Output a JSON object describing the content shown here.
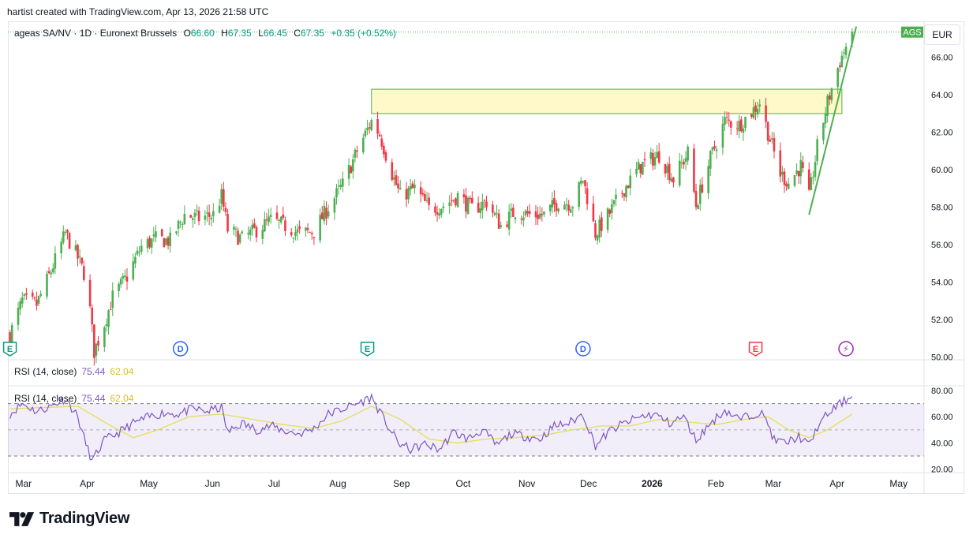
{
  "header": {
    "credit": "hartist created with TradingView.com, Apr 13, 2026 21:58 UTC"
  },
  "legend": {
    "symbol": "ageas SA/NV · 1D · Euronext Brussels",
    "open_label": "O",
    "open": "66.60",
    "high_label": "H",
    "high": "67.35",
    "low_label": "L",
    "low": "66.45",
    "close_label": "C",
    "close": "67.35",
    "change": "+0.35 (+0.52%)"
  },
  "currency": "EUR",
  "price_tag": {
    "ticker": "AGS",
    "value": "67.35"
  },
  "rsi_legend": {
    "name": "RSI (14, close)",
    "rsi": "75.44",
    "ma": "62.04"
  },
  "brand": "TradingView",
  "colors": {
    "up": "#4caf50",
    "down": "#f23645",
    "rsi": "#7e57c2",
    "rsi_ma": "#e0e05a",
    "zone_fill": "#fff8c8",
    "zone_stroke": "#4caf50"
  },
  "chart_data": [
    {
      "type": "candlestick",
      "y_ticks": [
        "66.00",
        "64.00",
        "62.00",
        "60.00",
        "58.00",
        "56.00",
        "54.00",
        "52.00",
        "50.00"
      ],
      "ylim": [
        49.9,
        67.8
      ],
      "x_ticks": [
        "Mar",
        "Apr",
        "May",
        "Jun",
        "Jul",
        "Aug",
        "Sep",
        "Oct",
        "Nov",
        "Dec",
        "2026",
        "Feb",
        "Mar",
        "Apr",
        "May"
      ],
      "last_price": 67.35,
      "series": [
        {
          "name": "AGS",
          "close_path": [
            [
              "2025-02-27",
              51.2
            ],
            [
              "2025-03-05",
              53.0
            ],
            [
              "2025-03-12",
              52.8
            ],
            [
              "2025-03-19",
              54.6
            ],
            [
              "2025-03-26",
              56.6
            ],
            [
              "2025-04-01",
              55.3
            ],
            [
              "2025-04-04",
              54.5
            ],
            [
              "2025-04-07",
              52.5
            ],
            [
              "2025-04-09",
              50.3
            ],
            [
              "2025-04-14",
              51.8
            ],
            [
              "2025-04-18",
              53.2
            ],
            [
              "2025-04-25",
              54.3
            ],
            [
              "2025-05-02",
              55.9
            ],
            [
              "2025-05-09",
              56.3
            ],
            [
              "2025-05-16",
              56.2
            ],
            [
              "2025-05-23",
              57.6
            ],
            [
              "2025-05-30",
              57.4
            ],
            [
              "2025-06-06",
              57.6
            ],
            [
              "2025-06-10",
              58.6
            ],
            [
              "2025-06-13",
              56.8
            ],
            [
              "2025-06-20",
              56.3
            ],
            [
              "2025-06-27",
              56.8
            ],
            [
              "2025-07-04",
              57.3
            ],
            [
              "2025-07-11",
              57.0
            ],
            [
              "2025-07-18",
              56.6
            ],
            [
              "2025-07-25",
              56.7
            ],
            [
              "2025-08-01",
              58.0
            ],
            [
              "2025-08-08",
              59.2
            ],
            [
              "2025-08-15",
              61.0
            ],
            [
              "2025-08-22",
              62.6
            ],
            [
              "2025-08-26",
              61.9
            ],
            [
              "2025-09-01",
              59.8
            ],
            [
              "2025-09-05",
              58.6
            ],
            [
              "2025-09-12",
              59.0
            ],
            [
              "2025-09-19",
              57.9
            ],
            [
              "2025-09-26",
              58.1
            ],
            [
              "2025-10-03",
              58.6
            ],
            [
              "2025-10-10",
              57.9
            ],
            [
              "2025-10-17",
              58.3
            ],
            [
              "2025-10-24",
              57.0
            ],
            [
              "2025-10-31",
              57.8
            ],
            [
              "2025-11-07",
              57.6
            ],
            [
              "2025-11-14",
              57.6
            ],
            [
              "2025-11-21",
              58.3
            ],
            [
              "2025-11-28",
              58.2
            ],
            [
              "2025-12-03",
              59.5
            ],
            [
              "2025-12-09",
              56.6
            ],
            [
              "2025-12-16",
              57.7
            ],
            [
              "2025-12-23",
              59.0
            ],
            [
              "2025-12-31",
              60.2
            ],
            [
              "2026-01-09",
              60.8
            ],
            [
              "2026-01-16",
              59.5
            ],
            [
              "2026-01-23",
              60.9
            ],
            [
              "2026-01-27",
              58.1
            ],
            [
              "2026-02-03",
              60.6
            ],
            [
              "2026-02-10",
              62.6
            ],
            [
              "2026-02-17",
              62.4
            ],
            [
              "2026-02-24",
              63.2
            ],
            [
              "2026-02-27",
              63.6
            ],
            [
              "2026-03-03",
              62.0
            ],
            [
              "2026-03-09",
              59.8
            ],
            [
              "2026-03-13",
              59.3
            ],
            [
              "2026-03-19",
              60.2
            ],
            [
              "2026-03-23",
              58.5
            ],
            [
              "2026-03-27",
              61.2
            ],
            [
              "2026-04-01",
              63.6
            ],
            [
              "2026-04-07",
              65.8
            ],
            [
              "2026-04-13",
              67.35
            ]
          ]
        }
      ],
      "annotations": {
        "zone": {
          "from": "2025-08-22",
          "to": "2026-04-08",
          "low": 63.0,
          "high": 64.3
        },
        "trendline": {
          "from": [
            "2026-03-23",
            57.6
          ],
          "to": [
            "2026-04-15",
            67.65
          ]
        },
        "event_markers": [
          {
            "date": "2025-02-27",
            "letter": "E"
          },
          {
            "date": "2025-05-21",
            "letter": "D"
          },
          {
            "date": "2025-08-20",
            "letter": "E"
          },
          {
            "date": "2025-12-03",
            "letter": "D"
          },
          {
            "date": "2026-02-25",
            "letter": "E"
          },
          {
            "date": "2026-04-10",
            "letter": "⚡"
          }
        ]
      }
    },
    {
      "type": "line",
      "y_ticks": [
        "80.00",
        "60.00",
        "40.00",
        "20.00"
      ],
      "ylim": [
        18.0,
        83.0
      ],
      "levels": [
        70,
        50,
        30
      ],
      "series": [
        {
          "name": "RSI (14, close)",
          "path": [
            [
              "2025-02-27",
              62
            ],
            [
              "2025-03-05",
              70
            ],
            [
              "2025-03-12",
              64
            ],
            [
              "2025-03-19",
              68
            ],
            [
              "2025-03-26",
              74
            ],
            [
              "2025-04-01",
              60
            ],
            [
              "2025-04-04",
              44
            ],
            [
              "2025-04-08",
              26
            ],
            [
              "2025-04-14",
              42
            ],
            [
              "2025-04-21",
              48
            ],
            [
              "2025-04-28",
              55
            ],
            [
              "2025-05-06",
              60
            ],
            [
              "2025-05-13",
              63
            ],
            [
              "2025-05-20",
              62
            ],
            [
              "2025-05-27",
              66
            ],
            [
              "2025-06-03",
              64
            ],
            [
              "2025-06-10",
              67
            ],
            [
              "2025-06-13",
              48
            ],
            [
              "2025-06-20",
              55
            ],
            [
              "2025-06-27",
              50
            ],
            [
              "2025-07-04",
              53
            ],
            [
              "2025-07-11",
              49
            ],
            [
              "2025-07-18",
              47
            ],
            [
              "2025-07-25",
              51
            ],
            [
              "2025-08-01",
              62
            ],
            [
              "2025-08-08",
              66
            ],
            [
              "2025-08-15",
              70
            ],
            [
              "2025-08-22",
              75
            ],
            [
              "2025-08-28",
              58
            ],
            [
              "2025-09-04",
              40
            ],
            [
              "2025-09-10",
              35
            ],
            [
              "2025-09-17",
              39
            ],
            [
              "2025-09-24",
              35
            ],
            [
              "2025-10-01",
              48
            ],
            [
              "2025-10-08",
              43
            ],
            [
              "2025-10-15",
              50
            ],
            [
              "2025-10-22",
              38
            ],
            [
              "2025-10-29",
              47
            ],
            [
              "2025-11-05",
              45
            ],
            [
              "2025-11-12",
              43
            ],
            [
              "2025-11-19",
              53
            ],
            [
              "2025-11-26",
              55
            ],
            [
              "2025-12-03",
              62
            ],
            [
              "2025-12-09",
              38
            ],
            [
              "2025-12-16",
              49
            ],
            [
              "2025-12-23",
              55
            ],
            [
              "2025-12-31",
              60
            ],
            [
              "2026-01-07",
              62
            ],
            [
              "2026-01-14",
              55
            ],
            [
              "2026-01-21",
              60
            ],
            [
              "2026-01-27",
              42
            ],
            [
              "2026-02-03",
              55
            ],
            [
              "2026-02-10",
              65
            ],
            [
              "2026-02-17",
              58
            ],
            [
              "2026-02-24",
              62
            ],
            [
              "2026-02-27",
              64
            ],
            [
              "2026-03-03",
              55
            ],
            [
              "2026-03-06",
              42
            ],
            [
              "2026-03-12",
              40
            ],
            [
              "2026-03-18",
              45
            ],
            [
              "2026-03-23",
              38
            ],
            [
              "2026-03-27",
              52
            ],
            [
              "2026-04-01",
              62
            ],
            [
              "2026-04-07",
              70
            ],
            [
              "2026-04-13",
              75.44
            ]
          ]
        },
        {
          "name": "RSI-based MA",
          "path": [
            [
              "2025-02-27",
              66
            ],
            [
              "2025-03-15",
              67
            ],
            [
              "2025-04-01",
              68
            ],
            [
              "2025-04-15",
              55
            ],
            [
              "2025-04-28",
              44
            ],
            [
              "2025-05-10",
              50
            ],
            [
              "2025-05-25",
              60
            ],
            [
              "2025-06-10",
              62
            ],
            [
              "2025-06-25",
              58
            ],
            [
              "2025-07-10",
              54
            ],
            [
              "2025-07-25",
              51
            ],
            [
              "2025-08-08",
              57
            ],
            [
              "2025-08-22",
              68
            ],
            [
              "2025-09-05",
              58
            ],
            [
              "2025-09-19",
              43
            ],
            [
              "2025-10-03",
              40
            ],
            [
              "2025-10-17",
              43
            ],
            [
              "2025-10-31",
              44
            ],
            [
              "2025-11-14",
              46
            ],
            [
              "2025-11-28",
              50
            ],
            [
              "2025-12-12",
              53
            ],
            [
              "2025-12-26",
              53
            ],
            [
              "2026-01-09",
              58
            ],
            [
              "2026-01-23",
              56
            ],
            [
              "2026-02-06",
              54
            ],
            [
              "2026-02-20",
              58
            ],
            [
              "2026-03-03",
              60
            ],
            [
              "2026-03-13",
              50
            ],
            [
              "2026-03-23",
              44
            ],
            [
              "2026-04-01",
              50
            ],
            [
              "2026-04-13",
              62.04
            ]
          ]
        }
      ]
    }
  ]
}
